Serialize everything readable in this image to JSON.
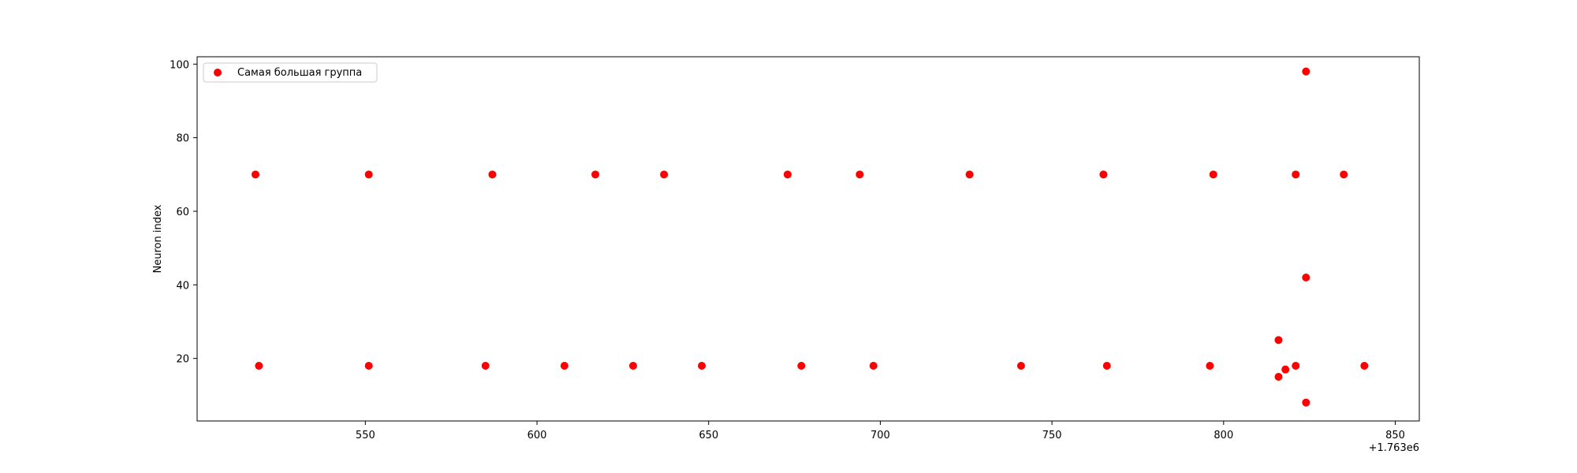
{
  "chart_data": {
    "type": "scatter",
    "title": "",
    "xlabel": "",
    "ylabel": "Neuron index",
    "x_offset_label": "+1.763e6",
    "xlim": [
      501,
      857
    ],
    "ylim": [
      3,
      102
    ],
    "x_ticks": [
      550,
      600,
      650,
      700,
      750,
      800,
      850
    ],
    "y_ticks": [
      20,
      40,
      60,
      80,
      100
    ],
    "grid": false,
    "legend_position": "upper-left",
    "marker_color": "#ff0000",
    "series": [
      {
        "name": "Самая большая группа",
        "points": [
          [
            518,
            70
          ],
          [
            551,
            70
          ],
          [
            587,
            70
          ],
          [
            617,
            70
          ],
          [
            637,
            70
          ],
          [
            673,
            70
          ],
          [
            694,
            70
          ],
          [
            726,
            70
          ],
          [
            765,
            70
          ],
          [
            797,
            70
          ],
          [
            821,
            70
          ],
          [
            835,
            70
          ],
          [
            519,
            18
          ],
          [
            551,
            18
          ],
          [
            585,
            18
          ],
          [
            608,
            18
          ],
          [
            628,
            18
          ],
          [
            648,
            18
          ],
          [
            677,
            18
          ],
          [
            698,
            18
          ],
          [
            741,
            18
          ],
          [
            766,
            18
          ],
          [
            796,
            18
          ],
          [
            821,
            18
          ],
          [
            841,
            18
          ],
          [
            824,
            98
          ],
          [
            824,
            42
          ],
          [
            816,
            25
          ],
          [
            818,
            17
          ],
          [
            816,
            15
          ],
          [
            824,
            8
          ]
        ]
      }
    ]
  }
}
